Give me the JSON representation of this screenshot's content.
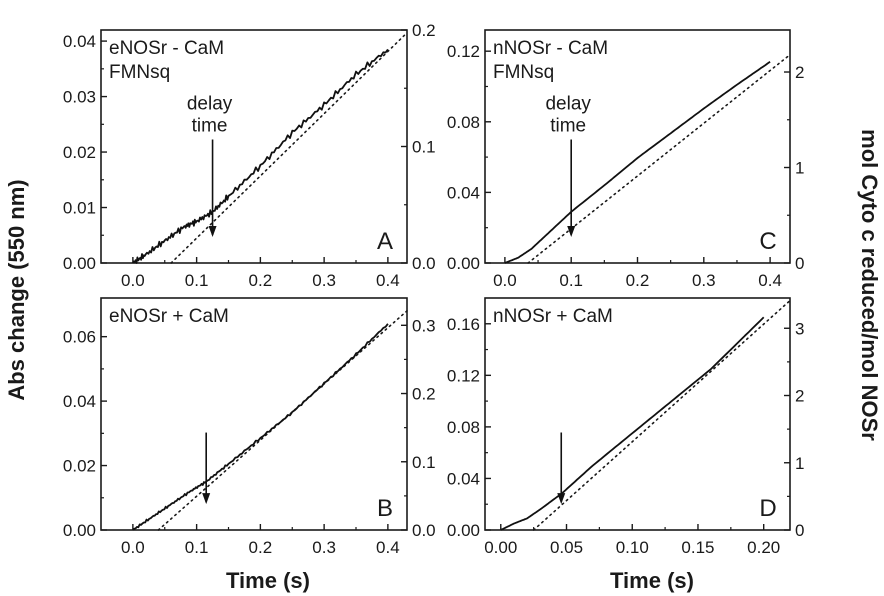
{
  "figure": {
    "ylabel_left": "Abs change (550 nm)",
    "ylabel_right": "mol Cyto c reduced/mol NOSr",
    "xlabel": "Time (s)"
  },
  "chart_data": [
    {
      "type": "line",
      "panel": "A",
      "label_lines": [
        "eNOSr - CaM",
        "FMNsq"
      ],
      "arrow_text": [
        "delay",
        "time"
      ],
      "xlim": [
        -0.05,
        0.43
      ],
      "ylim": [
        0,
        0.042
      ],
      "y2lim": [
        0,
        0.2
      ],
      "xticks": [
        0.0,
        0.1,
        0.2,
        0.3,
        0.4
      ],
      "xtick_labels": [
        "0.0",
        "0.1",
        "0.2",
        "0.3",
        "0.4"
      ],
      "yticks": [
        0.0,
        0.01,
        0.02,
        0.03,
        0.04
      ],
      "ytick_labels": [
        "0.00",
        "0.01",
        "0.02",
        "0.03",
        "0.04"
      ],
      "y2ticks": [
        0.0,
        0.1,
        0.2
      ],
      "y2tick_labels": [
        "0.0",
        "0.1",
        "0.2"
      ],
      "arrow_x": 0.125,
      "x": [
        0.0,
        0.02,
        0.05,
        0.08,
        0.1,
        0.125,
        0.15,
        0.2,
        0.25,
        0.3,
        0.35,
        0.4
      ],
      "y": [
        0.0,
        0.0015,
        0.004,
        0.0065,
        0.0075,
        0.0092,
        0.012,
        0.0175,
        0.0235,
        0.0285,
        0.034,
        0.0385
      ],
      "fit_x": [
        0.06,
        0.43
      ],
      "fit_y": [
        0.0,
        0.0415
      ]
    },
    {
      "type": "line",
      "panel": "C",
      "label_lines": [
        "nNOSr - CaM",
        "FMNsq"
      ],
      "arrow_text": [
        "delay",
        "time"
      ],
      "xlim": [
        -0.03,
        0.43
      ],
      "ylim": [
        0,
        0.132
      ],
      "y2lim": [
        0,
        2.44
      ],
      "xticks": [
        0.0,
        0.1,
        0.2,
        0.3,
        0.4
      ],
      "xtick_labels": [
        "0.0",
        "0.1",
        "0.2",
        "0.3",
        "0.4"
      ],
      "yticks": [
        0.0,
        0.04,
        0.08,
        0.12
      ],
      "ytick_labels": [
        "0.00",
        "0.04",
        "0.08",
        "0.12"
      ],
      "y2ticks": [
        0,
        1,
        2
      ],
      "y2tick_labels": [
        "0",
        "1",
        "2"
      ],
      "arrow_x": 0.1,
      "x": [
        0.0,
        0.02,
        0.04,
        0.06,
        0.08,
        0.1,
        0.15,
        0.2,
        0.25,
        0.3,
        0.35,
        0.4
      ],
      "y": [
        0.0,
        0.003,
        0.008,
        0.015,
        0.022,
        0.029,
        0.044,
        0.0595,
        0.0735,
        0.0875,
        0.101,
        0.114
      ],
      "fit_x": [
        0.035,
        0.43
      ],
      "fit_y": [
        0.0,
        0.118
      ]
    },
    {
      "type": "line",
      "panel": "B",
      "label_lines": [
        "eNOSr + CaM"
      ],
      "xlim": [
        -0.05,
        0.43
      ],
      "ylim": [
        0,
        0.072
      ],
      "y2lim": [
        0,
        0.34
      ],
      "xticks": [
        0.0,
        0.1,
        0.2,
        0.3,
        0.4
      ],
      "xtick_labels": [
        "0.0",
        "0.1",
        "0.2",
        "0.3",
        "0.4"
      ],
      "yticks": [
        0.0,
        0.02,
        0.04,
        0.06
      ],
      "ytick_labels": [
        "0.00",
        "0.02",
        "0.04",
        "0.06"
      ],
      "y2ticks": [
        0.0,
        0.1,
        0.2,
        0.3
      ],
      "y2tick_labels": [
        "0.0",
        "0.1",
        "0.2",
        "0.3"
      ],
      "arrow_x": 0.115,
      "x": [
        0.0,
        0.03,
        0.06,
        0.09,
        0.115,
        0.15,
        0.2,
        0.25,
        0.3,
        0.35,
        0.4
      ],
      "y": [
        0.0,
        0.004,
        0.008,
        0.012,
        0.015,
        0.0205,
        0.0285,
        0.0365,
        0.0455,
        0.0545,
        0.064
      ],
      "fit_x": [
        0.04,
        0.43
      ],
      "fit_y": [
        0.0,
        0.068
      ]
    },
    {
      "type": "line",
      "panel": "D",
      "label_lines": [
        "nNOSr + CaM"
      ],
      "xlim": [
        -0.012,
        0.22
      ],
      "ylim": [
        0,
        0.18
      ],
      "y2lim": [
        0,
        3.45
      ],
      "xticks": [
        0.0,
        0.05,
        0.1,
        0.15,
        0.2
      ],
      "xtick_labels": [
        "0.00",
        "0.05",
        "0.10",
        "0.15",
        "0.20"
      ],
      "yticks": [
        0.0,
        0.04,
        0.08,
        0.12,
        0.16
      ],
      "ytick_labels": [
        "0.00",
        "0.04",
        "0.08",
        "0.12",
        "0.16"
      ],
      "y2ticks": [
        0,
        1,
        2,
        3
      ],
      "y2tick_labels": [
        "0",
        "1",
        "2",
        "3"
      ],
      "arrow_x": 0.046,
      "x": [
        0.0,
        0.01,
        0.02,
        0.03,
        0.046,
        0.07,
        0.1,
        0.13,
        0.16,
        0.2
      ],
      "y": [
        0.0,
        0.005,
        0.009,
        0.016,
        0.028,
        0.05,
        0.075,
        0.1,
        0.125,
        0.165
      ],
      "fit_x": [
        0.025,
        0.22
      ],
      "fit_y": [
        0.0,
        0.178
      ]
    }
  ]
}
